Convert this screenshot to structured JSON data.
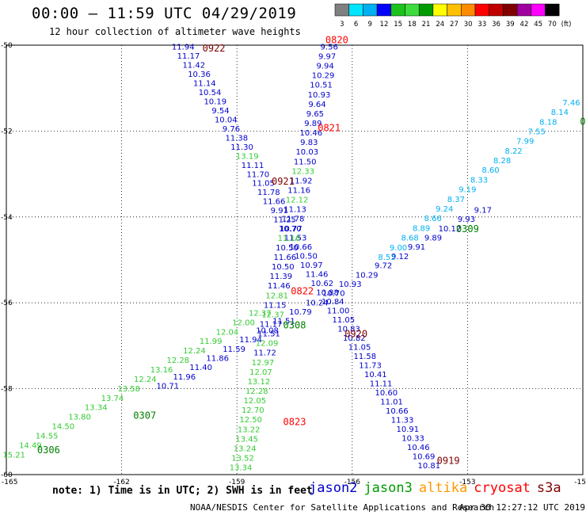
{
  "title": "00:00 – 11:59 UTC 04/29/2019",
  "subtitle": "12 hour collection of altimeter wave heights",
  "color_scale": {
    "labels": [
      "3",
      "6",
      "9",
      "12",
      "15",
      "18",
      "21",
      "24",
      "27",
      "30",
      "33",
      "36",
      "39",
      "42",
      "45",
      "70",
      "(ft)"
    ],
    "colors": [
      "#808080",
      "#00e5ff",
      "#00b0f0",
      "#0000ff",
      "#1cc21c",
      "#3ddc3d",
      "#009c00",
      "#ffff00",
      "#ffc000",
      "#ff8c00",
      "#ff0000",
      "#c00000",
      "#800000",
      "#a000a0",
      "#ff00ff",
      "#000000"
    ]
  },
  "axes": {
    "lat_labels": [
      "-50",
      "-52",
      "-54",
      "-56",
      "-58",
      "-60"
    ],
    "lon_labels": [
      "-165",
      "-162",
      "-159",
      "-156",
      "-153",
      "-15"
    ]
  },
  "chart_data": {
    "type": "scatter",
    "lat_range": [
      -60,
      -50
    ],
    "lon_range": [
      -165,
      -150
    ],
    "tracks": [
      {
        "name": "T1",
        "labels": [
          "11.94",
          "11.17",
          "11.42",
          "10.36",
          "11.14",
          "10.54",
          "10.19",
          "9.54",
          "10.04",
          "9.76",
          "11.38",
          "11.30",
          "13.19",
          "11.11",
          "11.70",
          "11.05",
          "11.78",
          "11.66",
          "9.91",
          "11.25",
          "10.70",
          "11.53",
          "10.66",
          "10.50",
          "10.97",
          "11.46",
          "10.62",
          "10.88",
          "10.84",
          "11.00",
          "11.05",
          "10.83",
          "10.82",
          "11.05",
          "11.58",
          "11.73",
          "10.41",
          "11.11",
          "10.60",
          "11.01",
          "10.66",
          "11.33",
          "10.91",
          "10.33",
          "10.46",
          "10.69",
          "10.81"
        ],
        "colors": [
          "#0000cc",
          "#0000cc",
          "#0000cc",
          "#0000cc",
          "#0000cc",
          "#0000cc",
          "#0000cc",
          "#0000cc",
          "#0000cc",
          "#0000cc",
          "#0000cc",
          "#0000cc",
          "#33cc33",
          "#0000cc",
          "#0000cc",
          "#0000cc",
          "#0000cc",
          "#0000cc",
          "#0000cc",
          "#0000cc",
          "#0000cc",
          "#0000cc",
          "#0000cc",
          "#0000cc",
          "#0000cc",
          "#0000cc",
          "#0000cc",
          "#0000cc",
          "#0000cc",
          "#0000cc",
          "#0000cc",
          "#0000cc",
          "#0000cc",
          "#0000cc",
          "#0000cc",
          "#0000cc",
          "#0000cc",
          "#0000cc",
          "#0000cc",
          "#0000cc",
          "#0000cc",
          "#0000cc",
          "#0000cc",
          "#0000cc",
          "#0000cc",
          "#0000cc",
          "#0000cc"
        ],
        "start": {
          "lat": -50.1,
          "lon": -160.4
        },
        "end": {
          "lat": -59.85,
          "lon": -154.0
        }
      },
      {
        "name": "T2",
        "labels": [
          "9.56",
          "9.97",
          "9.94",
          "10.29",
          "10.51",
          "10.93",
          "9.64",
          "9.65",
          "9.89",
          "10.46",
          "9.83",
          "10.03",
          "11.50",
          "12.33",
          "11.92",
          "11.16",
          "12.12",
          "11.13",
          "11.78",
          "10.77",
          "11.16",
          "10.50",
          "11.66",
          "10.50",
          "11.39",
          "11.46",
          "12.81",
          "11.15",
          "12.37",
          "11.17",
          "11.51",
          "12.09",
          "11.72",
          "12.97",
          "12.07",
          "13.12",
          "12.28",
          "12.05",
          "12.70",
          "12.50",
          "13.22",
          "13.45",
          "13.24",
          "13.52",
          "13.34"
        ],
        "colors": [
          "#0000cc",
          "#0000cc",
          "#0000cc",
          "#0000cc",
          "#0000cc",
          "#0000cc",
          "#0000cc",
          "#0000cc",
          "#0000cc",
          "#0000cc",
          "#0000cc",
          "#0000cc",
          "#0000cc",
          "#33cc33",
          "#0000cc",
          "#0000cc",
          "#33cc33",
          "#0000cc",
          "#0000cc",
          "#0000cc",
          "#33cc33",
          "#0000cc",
          "#0000cc",
          "#0000cc",
          "#0000cc",
          "#0000cc",
          "#33cc33",
          "#0000cc",
          "#33cc33",
          "#0000cc",
          "#0000cc",
          "#33cc33",
          "#0000cc",
          "#33cc33",
          "#33cc33",
          "#33cc33",
          "#33cc33",
          "#33cc33",
          "#33cc33",
          "#33cc33",
          "#33cc33",
          "#33cc33",
          "#33cc33",
          "#33cc33",
          "#33cc33"
        ],
        "start": {
          "lat": -50.1,
          "lon": -156.6
        },
        "end": {
          "lat": -59.9,
          "lon": -158.9
        }
      },
      {
        "name": "T3",
        "labels": [
          "10.71",
          "11.96",
          "11.40",
          "11.86",
          "11.59",
          "11.94",
          "10.08",
          "11.51",
          "10.79",
          "10.24",
          "10.70",
          "10.93",
          "10.29",
          "9.72",
          "9.12",
          "9.91",
          "9.89",
          "10.12",
          "9.93",
          "9.17"
        ],
        "colors": [
          "#0000cc",
          "#0000cc",
          "#0000cc",
          "#0000cc",
          "#0000cc",
          "#0000cc",
          "#0000cc",
          "#0000cc",
          "#0000cc",
          "#0000cc",
          "#0000cc",
          "#0000cc",
          "#0000cc",
          "#0000cc",
          "#0000cc",
          "#0000cc",
          "#0000cc",
          "#0000cc",
          "#0000cc",
          "#0000cc"
        ],
        "start": {
          "lat": -58.0,
          "lon": -160.8
        },
        "end": {
          "lat": -53.9,
          "lon": -152.6
        }
      },
      {
        "name": "T4",
        "labels": [
          "15.21",
          "14.49",
          "14.55",
          "14.50",
          "13.80",
          "13.34",
          "13.74",
          "13.58",
          "12.24",
          "13.16",
          "12.28",
          "12.24",
          "11.99",
          "12.04",
          "12.00",
          "12.37"
        ],
        "colors": [
          "#33cc33",
          "#33cc33",
          "#33cc33",
          "#33cc33",
          "#33cc33",
          "#33cc33",
          "#33cc33",
          "#33cc33",
          "#33cc33",
          "#33cc33",
          "#33cc33",
          "#33cc33",
          "#33cc33",
          "#33cc33",
          "#33cc33",
          "#33cc33"
        ],
        "start": {
          "lat": -59.6,
          "lon": -164.8
        },
        "end": {
          "lat": -56.3,
          "lon": -158.4
        }
      },
      {
        "name": "T5",
        "labels": [
          "8.53",
          "9.00",
          "8.68",
          "8.89",
          "8.66",
          "9.24",
          "8.37",
          "9.19",
          "8.33",
          "8.60",
          "8.28",
          "8.22",
          "7.99",
          "7.55",
          "8.18",
          "8.14",
          "7.46"
        ],
        "colors": [
          "#00b0f0",
          "#00b0f0",
          "#00b0f0",
          "#00b0f0",
          "#00b0f0",
          "#00b0f0",
          "#00b0f0",
          "#00b0f0",
          "#00b0f0",
          "#00b0f0",
          "#00b0f0",
          "#00b0f0",
          "#00b0f0",
          "#00b0f0",
          "#00b0f0",
          "#00b0f0",
          "#00b0f0"
        ],
        "start": {
          "lat": -55.0,
          "lon": -155.1
        },
        "end": {
          "lat": -51.4,
          "lon": -150.3
        }
      }
    ],
    "time_markers": [
      {
        "text": "0922",
        "lat": -50.15,
        "lon": -159.6,
        "color": "#800000"
      },
      {
        "text": "0820",
        "lat": -49.95,
        "lon": -156.4,
        "color": "#ff0000"
      },
      {
        "text": "0821",
        "lat": -52.0,
        "lon": -156.6,
        "color": "#ff0000"
      },
      {
        "text": "0921",
        "lat": -53.25,
        "lon": -157.8,
        "color": "#800000"
      },
      {
        "text": "0309",
        "lat": -54.35,
        "lon": -153.0,
        "color": "#008000"
      },
      {
        "text": "0822",
        "lat": -55.8,
        "lon": -157.3,
        "color": "#ff0000"
      },
      {
        "text": "0308",
        "lat": -56.6,
        "lon": -157.5,
        "color": "#008000"
      },
      {
        "text": "0920",
        "lat": -56.8,
        "lon": -155.9,
        "color": "#800000"
      },
      {
        "text": "0307",
        "lat": -58.7,
        "lon": -161.4,
        "color": "#008000"
      },
      {
        "text": "0823",
        "lat": -58.85,
        "lon": -157.5,
        "color": "#ff0000"
      },
      {
        "text": "0306",
        "lat": -59.5,
        "lon": -163.9,
        "color": "#008000"
      },
      {
        "text": "0919",
        "lat": -59.75,
        "lon": -153.5,
        "color": "#800000"
      },
      {
        "text": "0",
        "lat": -51.85,
        "lon": -150.0,
        "color": "#008000"
      }
    ]
  },
  "footer": {
    "note": "note: 1) Time is in UTC; 2) SWH is in feet",
    "satellites": [
      {
        "name": "jason2",
        "color": "#0000cc"
      },
      {
        "name": "jason3",
        "color": "#009c00"
      },
      {
        "name": "altika",
        "color": "#ff9900"
      },
      {
        "name": "cryosat",
        "color": "#ff0000"
      },
      {
        "name": "s3a",
        "color": "#800000"
      }
    ],
    "credit": "NOAA/NESDIS Center for Satellite Applications and Research",
    "timestamp": "Apr 30 12:27:12 UTC 2019"
  }
}
